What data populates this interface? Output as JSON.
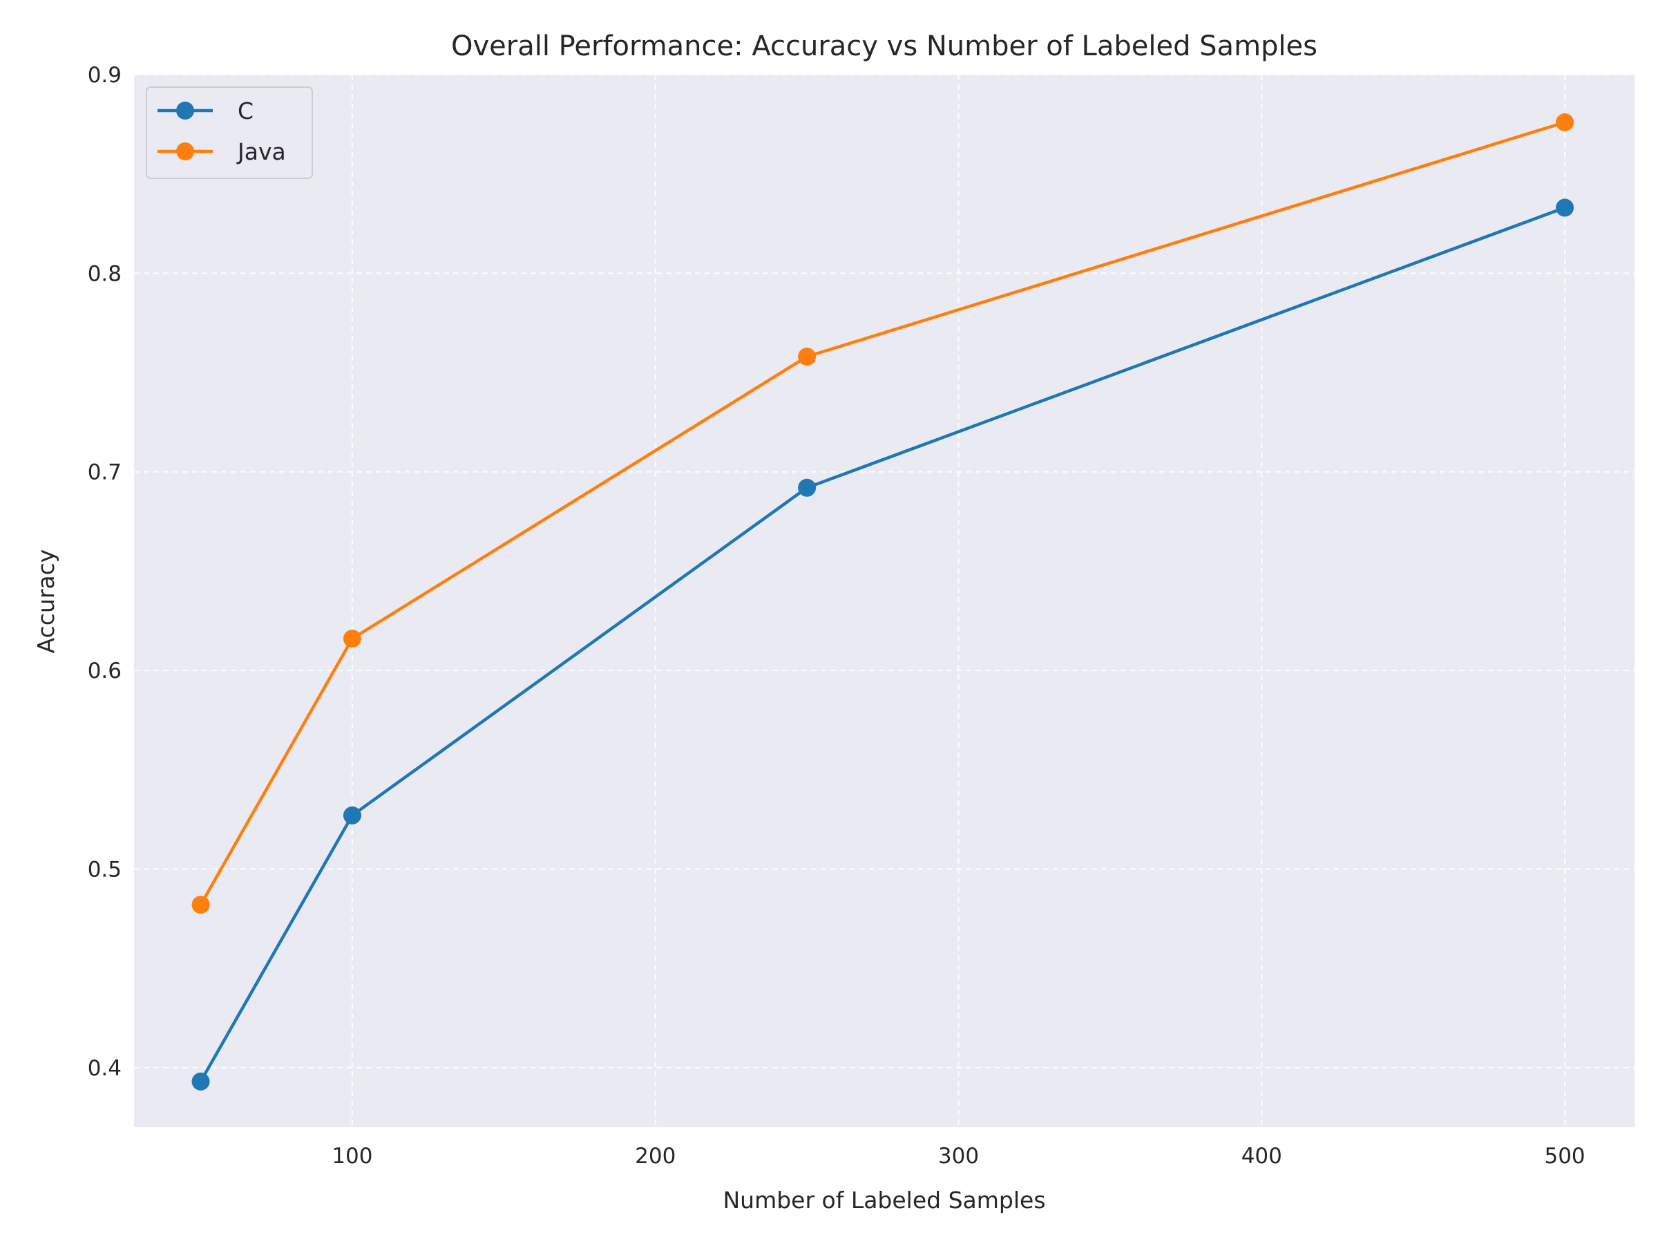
{
  "chart_data": {
    "type": "line",
    "title": "Overall Performance: Accuracy vs Number of Labeled Samples",
    "xlabel": "Number of Labeled Samples",
    "ylabel": "Accuracy",
    "x": [
      50,
      100,
      250,
      500
    ],
    "xlim": [
      28,
      523
    ],
    "ylim": [
      0.37,
      0.9
    ],
    "xticks": [
      100,
      200,
      300,
      400,
      500
    ],
    "yticks": [
      0.4,
      0.5,
      0.6,
      0.7,
      0.8,
      0.9
    ],
    "xtick_labels": [
      "100",
      "200",
      "300",
      "400",
      "500"
    ],
    "ytick_labels": [
      "0.4",
      "0.5",
      "0.6",
      "0.7",
      "0.8",
      "0.9"
    ],
    "grid": true,
    "legend_position": "top-left",
    "series": [
      {
        "name": "C",
        "color": "#1f77b4",
        "values": [
          0.393,
          0.527,
          0.692,
          0.833
        ]
      },
      {
        "name": "Java",
        "color": "#ff7f0e",
        "values": [
          0.482,
          0.616,
          0.758,
          0.876
        ]
      }
    ],
    "background_color": "#eaeaf2",
    "grid_color": "#ffffff"
  }
}
